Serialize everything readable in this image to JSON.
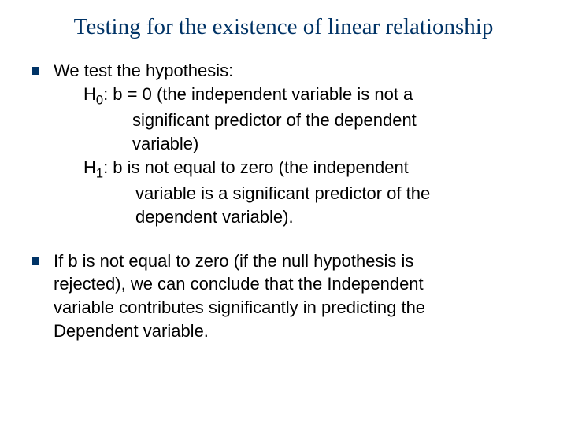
{
  "title": "Testing for the existence of linear relationship",
  "b1": {
    "l1": "We test the hypothesis:",
    "l2_pre": "H",
    "l2_sub": "0",
    "l2_post": ": b = 0 (the independent variable is not a",
    "l3": "significant predictor of the dependent",
    "l4": "variable)",
    "l5_pre": "H",
    "l5_sub": "1",
    "l5_post": ": b is not equal to zero (the independent",
    "l6": "variable is a significant predictor of the",
    "l7": "dependent variable)."
  },
  "b2": {
    "l1": "If b is not equal to zero (if the null hypothesis is",
    "l2": "rejected),  we can conclude that the  Independent",
    "l3": "variable contributes significantly in predicting the",
    "l4": "Dependent variable."
  },
  "colors": {
    "title": "#003366",
    "bullet": "#003366",
    "text": "#000000",
    "background": "#ffffff"
  }
}
